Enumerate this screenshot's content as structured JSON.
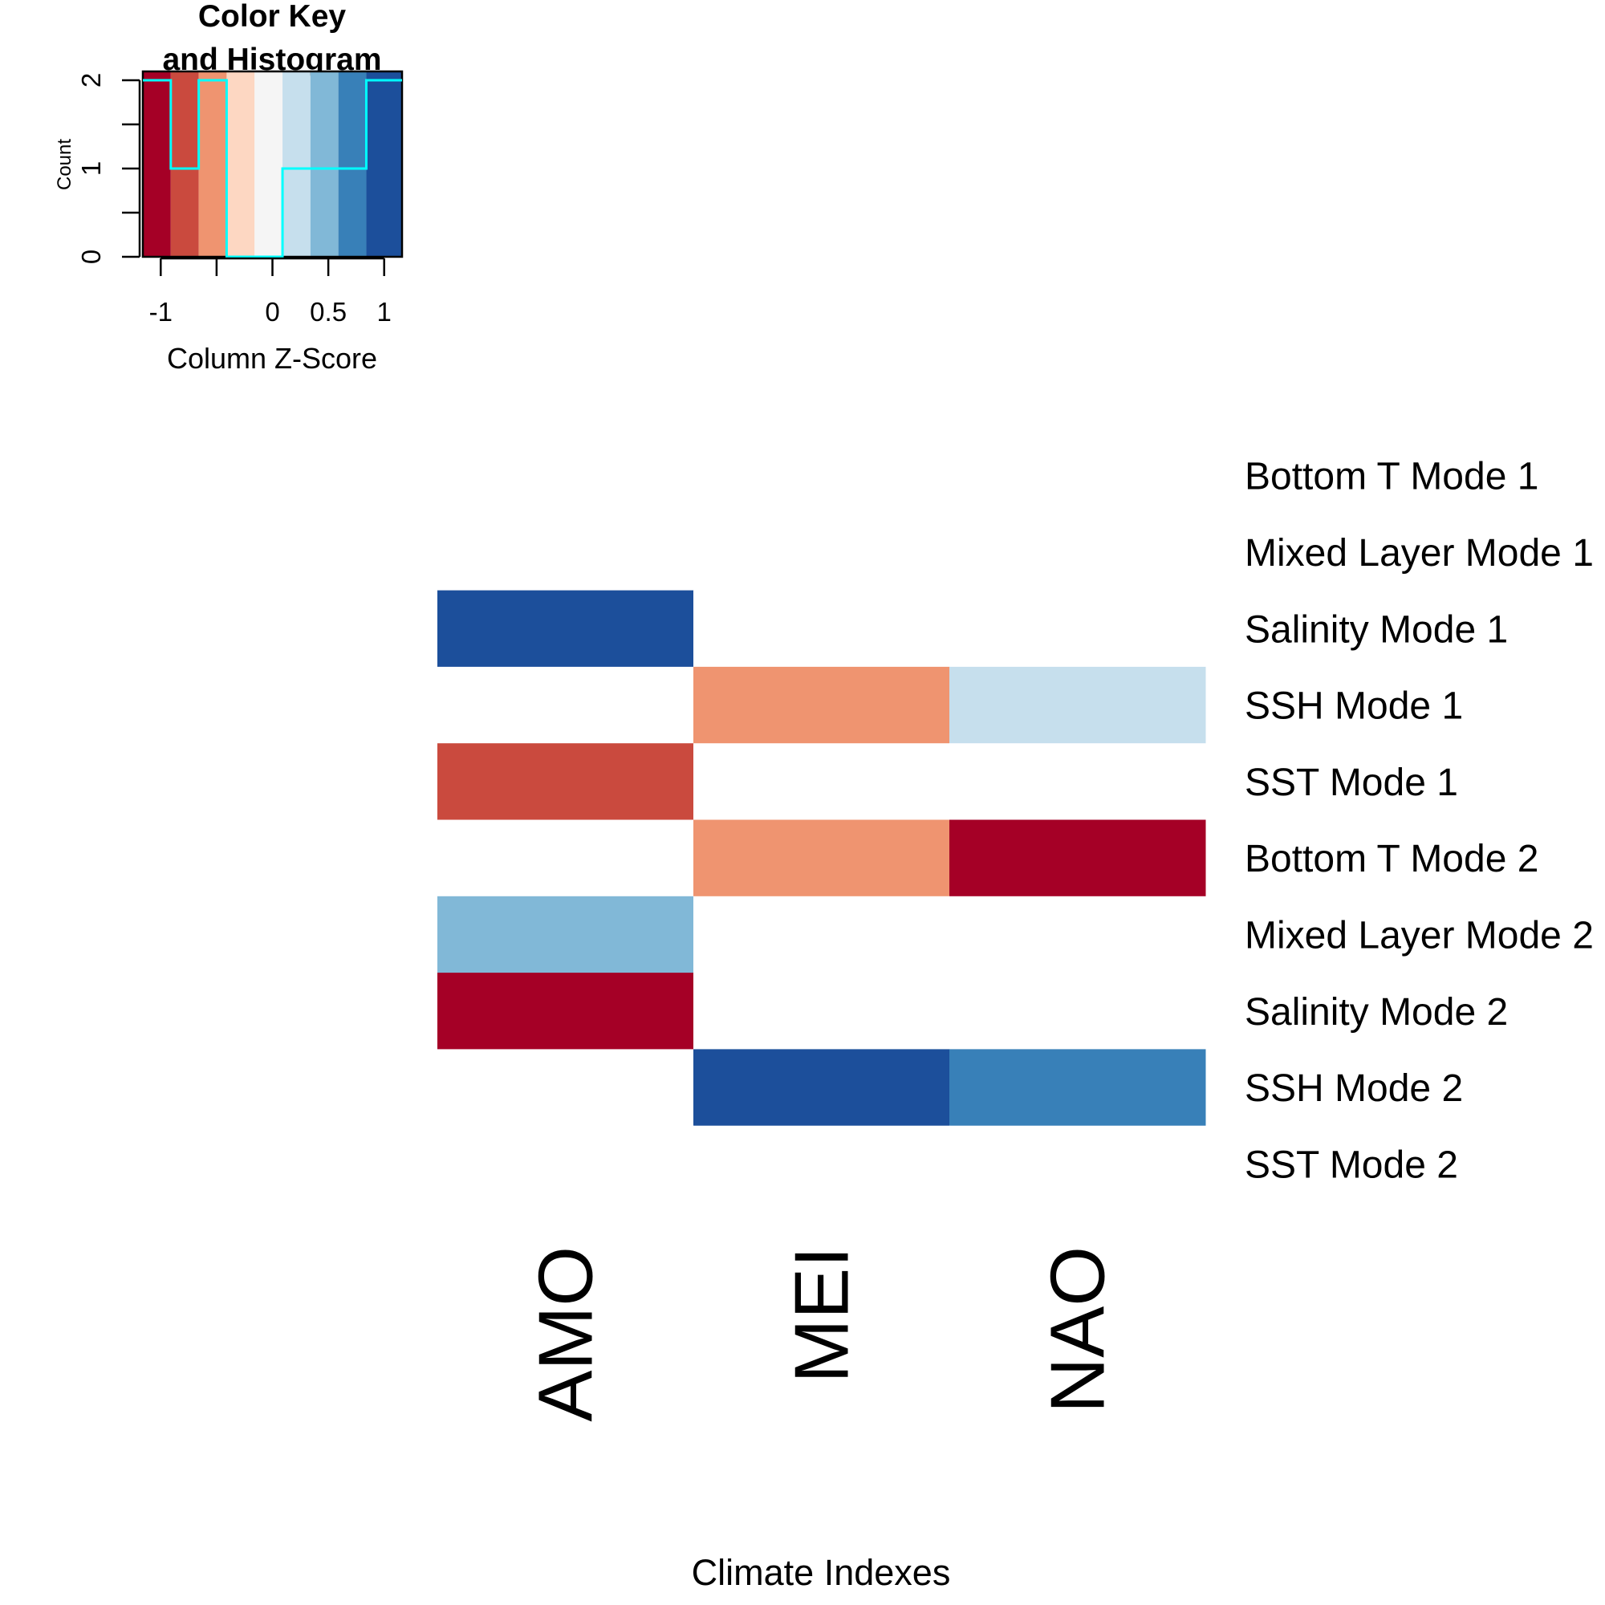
{
  "chart_data": {
    "type": "heatmap",
    "xlabel": "Climate Indexes",
    "ylabel": "",
    "columns": [
      "AMO",
      "MEI",
      "NAO"
    ],
    "rows": [
      "Bottom T Mode 1",
      "Mixed Layer Mode 1",
      "Salinity Mode 1",
      "SSH Mode 1",
      "SST Mode 1",
      "Bottom T Mode 2",
      "Mixed Layer Mode 2",
      "Salinity Mode 2",
      "SSH Mode 2",
      "SST Mode 2"
    ],
    "values": [
      [
        null,
        null,
        null
      ],
      [
        null,
        null,
        null
      ],
      [
        1.1,
        null,
        null
      ],
      [
        null,
        -0.6,
        0.3
      ],
      [
        -0.9,
        null,
        null
      ],
      [
        null,
        -0.6,
        -1.1
      ],
      [
        0.5,
        null,
        null
      ],
      [
        -1.1,
        null,
        null
      ],
      [
        null,
        1.1,
        0.8
      ],
      [
        null,
        null,
        null
      ]
    ],
    "color_scale": {
      "breaks": [
        -1.16,
        -0.91,
        -0.66,
        -0.41,
        -0.16,
        0.09,
        0.34,
        0.59,
        0.84,
        1.16
      ],
      "colors": [
        "#a50026",
        "#ca4a3e",
        "#ef9470",
        "#fdd7c2",
        "#f5f5f5",
        "#c6dfed",
        "#81b8d7",
        "#3880b8",
        "#1c4f9b"
      ],
      "missing_color": "#ffffff"
    },
    "color_key": {
      "title_line1": "Color Key",
      "title_line2": "and Histogram",
      "xlabel": "Column Z-Score",
      "ylabel": "Count",
      "xticks": [
        "-1",
        "0",
        "0.5",
        "1"
      ],
      "xtick_values": [
        -1,
        0,
        0.5,
        1
      ],
      "yticks": [
        "0",
        "1",
        "2"
      ],
      "ytick_values": [
        0,
        1,
        2
      ],
      "minor_xtick_values": [
        -0.5
      ],
      "minor_ytick_values": [
        0.5,
        1.5
      ],
      "ylim": [
        0,
        2
      ],
      "histogram_counts": [
        2,
        1,
        2,
        0,
        0,
        1,
        1,
        1,
        2
      ],
      "histogram_color": "#00ffff"
    }
  }
}
